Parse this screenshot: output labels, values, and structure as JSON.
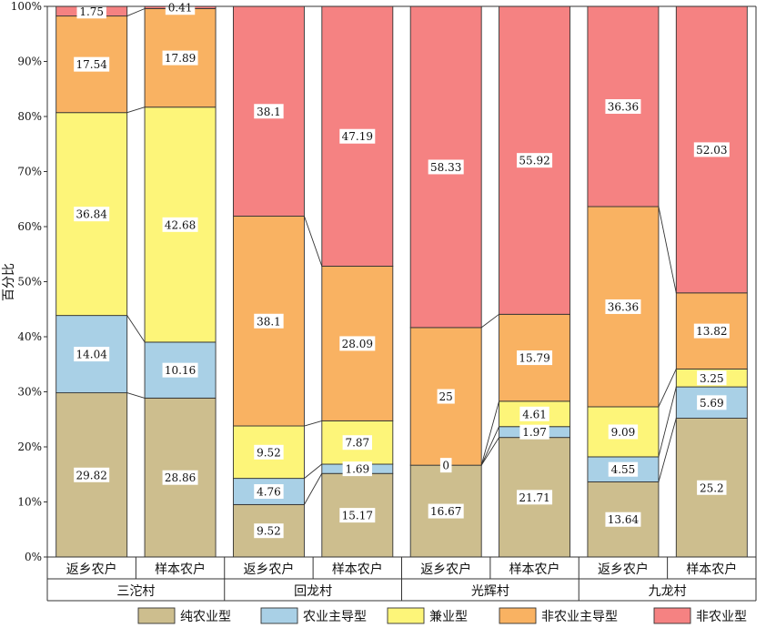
{
  "chart_data": {
    "type": "bar",
    "stacked": true,
    "ylabel": "百分比",
    "ylim": [
      0,
      100
    ],
    "yticks": [
      "0%",
      "10%",
      "20%",
      "30%",
      "40%",
      "50%",
      "60%",
      "70%",
      "80%",
      "90%",
      "100%"
    ],
    "groups": [
      "三沱村",
      "回龙村",
      "光辉村",
      "九龙村"
    ],
    "categories": [
      "返乡农户",
      "样本农户",
      "返乡农户",
      "样本农户",
      "返乡农户",
      "样本农户",
      "返乡农户",
      "样本农户"
    ],
    "series": [
      {
        "name": "纯农业型",
        "color": "#cdbe8e",
        "values": [
          29.82,
          28.86,
          9.52,
          15.17,
          16.67,
          21.71,
          13.64,
          25.2
        ],
        "labels": [
          "29.82",
          "28.86",
          "9.52",
          "15.17",
          "16.67",
          "21.71",
          "13.64",
          "25.2"
        ]
      },
      {
        "name": "农业主导型",
        "color": "#a9d0e6",
        "values": [
          14.04,
          10.16,
          4.76,
          1.69,
          0,
          1.97,
          4.55,
          5.69
        ],
        "labels": [
          "14.04",
          "10.16",
          "4.76",
          "1.69",
          "0",
          "1.97",
          "4.55",
          "5.69"
        ]
      },
      {
        "name": "兼业型",
        "color": "#fdf579",
        "values": [
          36.84,
          42.68,
          9.52,
          7.87,
          0,
          4.61,
          9.09,
          3.25
        ],
        "labels": [
          "36.84",
          "42.68",
          "9.52",
          "7.87",
          "",
          "4.61",
          "9.09",
          "3.25"
        ]
      },
      {
        "name": "非农业主导型",
        "color": "#f9b262",
        "values": [
          17.54,
          17.89,
          38.1,
          28.09,
          25,
          15.79,
          36.36,
          13.82
        ],
        "labels": [
          "17.54",
          "17.89",
          "38.1",
          "28.09",
          "25",
          "15.79",
          "36.36",
          "13.82"
        ]
      },
      {
        "name": "非农业型",
        "color": "#f58282",
        "values": [
          1.75,
          0.41,
          38.1,
          47.19,
          58.33,
          55.92,
          36.36,
          52.03
        ],
        "labels": [
          "1.75",
          "0.41",
          "38.1",
          "47.19",
          "58.33",
          "55.92",
          "36.36",
          "52.03"
        ]
      }
    ],
    "grid": false,
    "legend": "bottom"
  }
}
